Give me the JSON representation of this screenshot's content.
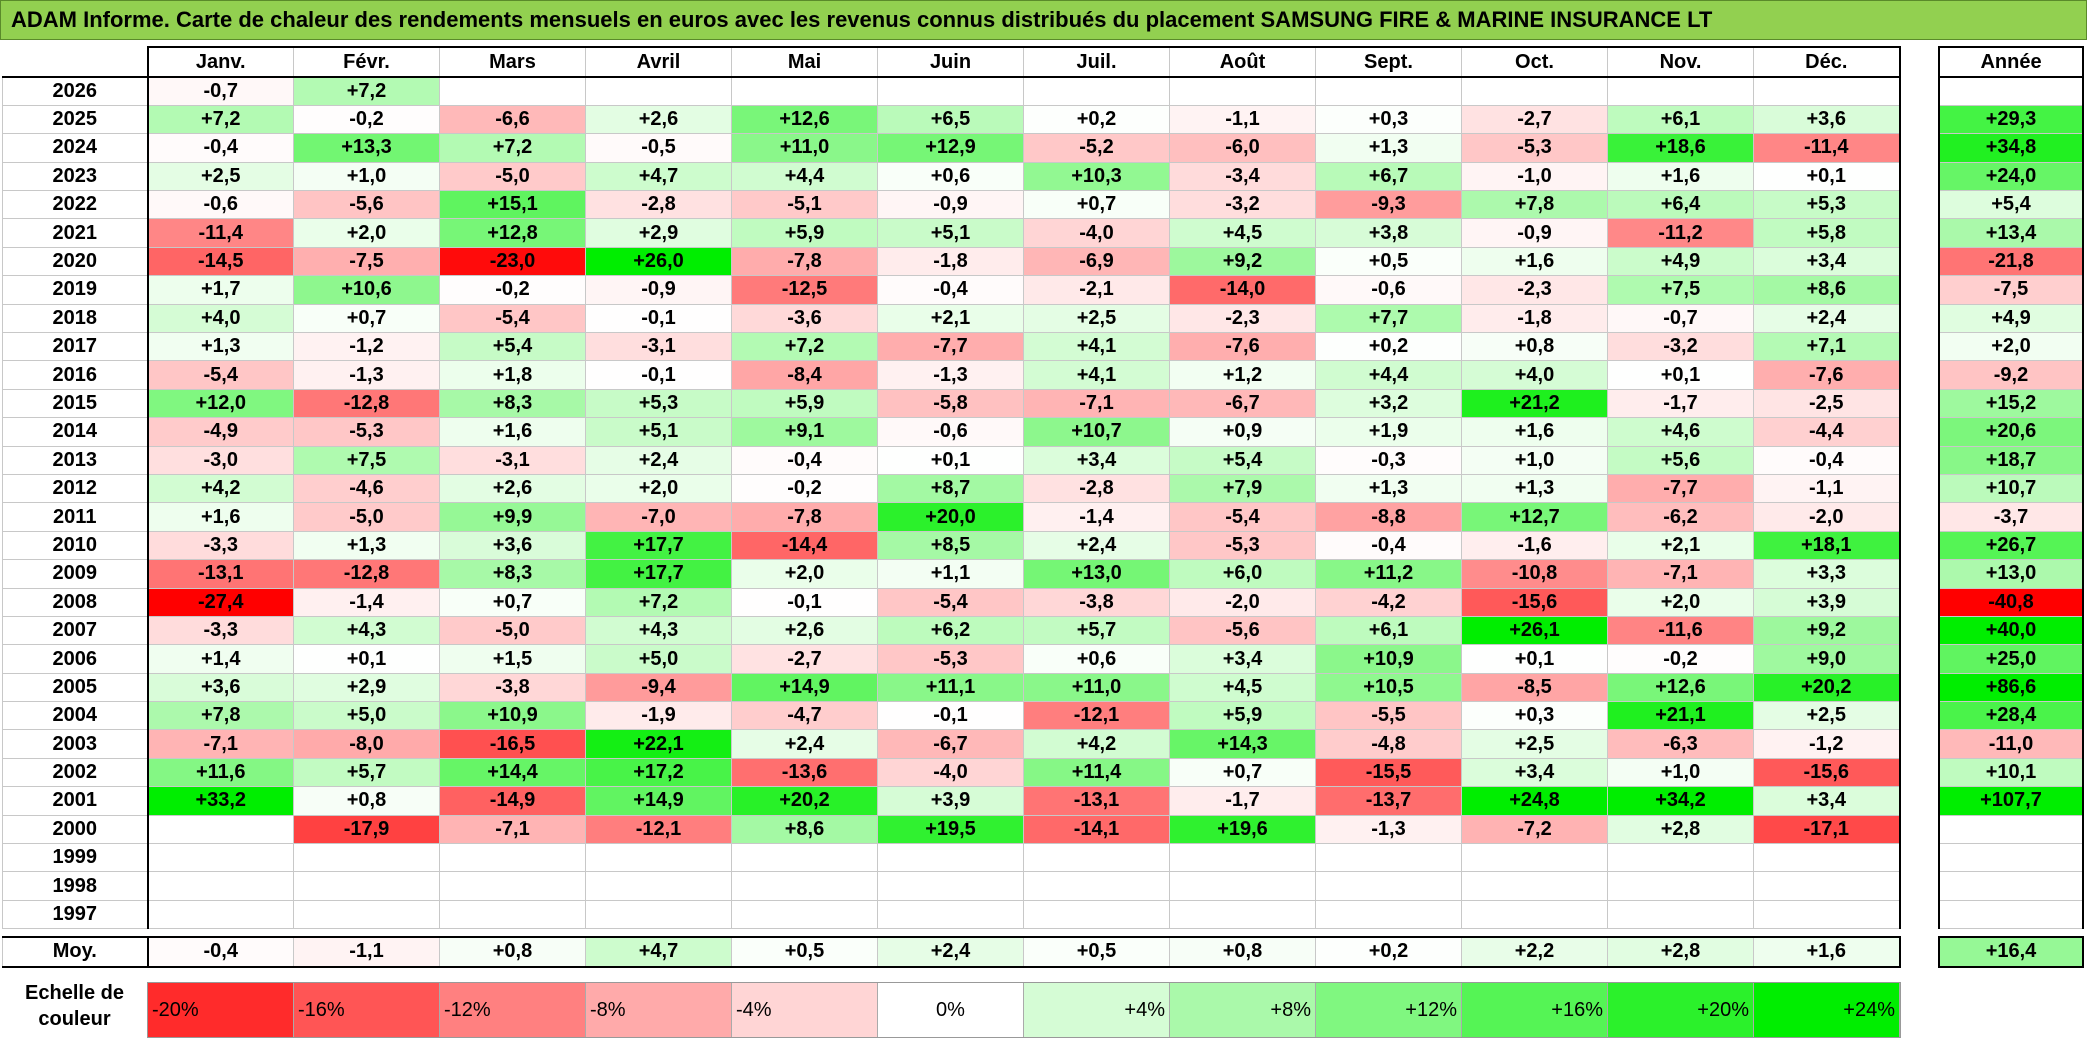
{
  "title": "ADAM Informe. Carte de chaleur des rendements mensuels en euros avec les revenus connus distribués du placement SAMSUNG FIRE & MARINE INSURANCE LT",
  "year_header": "Année",
  "avg_label": "Moy.",
  "scale_label": "Echelle de couleur",
  "chart_data": {
    "type": "heatmap",
    "columns": [
      "Janv.",
      "Févr.",
      "Mars",
      "Avril",
      "Mai",
      "Juin",
      "Juil.",
      "Août",
      "Sept.",
      "Oct.",
      "Nov.",
      "Déc."
    ],
    "rows": [
      {
        "year": "2026",
        "months": [
          -0.7,
          7.2,
          null,
          null,
          null,
          null,
          null,
          null,
          null,
          null,
          null,
          null
        ],
        "annual": null
      },
      {
        "year": "2025",
        "months": [
          7.2,
          -0.2,
          -6.6,
          2.6,
          12.6,
          6.5,
          0.2,
          -1.1,
          0.3,
          -2.7,
          6.1,
          3.6
        ],
        "annual": 29.3
      },
      {
        "year": "2024",
        "months": [
          -0.4,
          13.3,
          7.2,
          -0.5,
          11.0,
          12.9,
          -5.2,
          -6.0,
          1.3,
          -5.3,
          18.6,
          -11.4
        ],
        "annual": 34.8
      },
      {
        "year": "2023",
        "months": [
          2.5,
          1.0,
          -5.0,
          4.7,
          4.4,
          0.6,
          10.3,
          -3.4,
          6.7,
          -1.0,
          1.6,
          0.1
        ],
        "annual": 24.0
      },
      {
        "year": "2022",
        "months": [
          -0.6,
          -5.6,
          15.1,
          -2.8,
          -5.1,
          -0.9,
          0.7,
          -3.2,
          -9.3,
          7.8,
          6.4,
          5.3
        ],
        "annual": 5.4
      },
      {
        "year": "2021",
        "months": [
          -11.4,
          2.0,
          12.8,
          2.9,
          5.9,
          5.1,
          -4.0,
          4.5,
          3.8,
          -0.9,
          -11.2,
          5.8
        ],
        "annual": 13.4
      },
      {
        "year": "2020",
        "months": [
          -14.5,
          -7.5,
          -23.0,
          26.0,
          -7.8,
          -1.8,
          -6.9,
          9.2,
          0.5,
          1.6,
          4.9,
          3.4
        ],
        "annual": -21.8
      },
      {
        "year": "2019",
        "months": [
          1.7,
          10.6,
          -0.2,
          -0.9,
          -12.5,
          -0.4,
          -2.1,
          -14.0,
          -0.6,
          -2.3,
          7.5,
          8.6
        ],
        "annual": -7.5
      },
      {
        "year": "2018",
        "months": [
          4.0,
          0.7,
          -5.4,
          -0.1,
          -3.6,
          2.1,
          2.5,
          -2.3,
          7.7,
          -1.8,
          -0.7,
          2.4
        ],
        "annual": 4.9
      },
      {
        "year": "2017",
        "months": [
          1.3,
          -1.2,
          5.4,
          -3.1,
          7.2,
          -7.7,
          4.1,
          -7.6,
          0.2,
          0.8,
          -3.2,
          7.1
        ],
        "annual": 2.0
      },
      {
        "year": "2016",
        "months": [
          -5.4,
          -1.3,
          1.8,
          -0.1,
          -8.4,
          -1.3,
          4.1,
          1.2,
          4.4,
          4.0,
          0.1,
          -7.6
        ],
        "annual": -9.2
      },
      {
        "year": "2015",
        "months": [
          12.0,
          -12.8,
          8.3,
          5.3,
          5.9,
          -5.8,
          -7.1,
          -6.7,
          3.2,
          21.2,
          -1.7,
          -2.5
        ],
        "annual": 15.2
      },
      {
        "year": "2014",
        "months": [
          -4.9,
          -5.3,
          1.6,
          5.1,
          9.1,
          -0.6,
          10.7,
          0.9,
          1.9,
          1.6,
          4.6,
          -4.4
        ],
        "annual": 20.6
      },
      {
        "year": "2013",
        "months": [
          -3.0,
          7.5,
          -3.1,
          2.4,
          -0.4,
          0.1,
          3.4,
          5.4,
          -0.3,
          1.0,
          5.6,
          -0.4
        ],
        "annual": 18.7
      },
      {
        "year": "2012",
        "months": [
          4.2,
          -4.6,
          2.6,
          2.0,
          -0.2,
          8.7,
          -2.8,
          7.9,
          1.3,
          1.3,
          -7.7,
          -1.1
        ],
        "annual": 10.7
      },
      {
        "year": "2011",
        "months": [
          1.6,
          -5.0,
          9.9,
          -7.0,
          -7.8,
          20.0,
          -1.4,
          -5.4,
          -8.8,
          12.7,
          -6.2,
          -2.0
        ],
        "annual": -3.7
      },
      {
        "year": "2010",
        "months": [
          -3.3,
          1.3,
          3.6,
          17.7,
          -14.4,
          8.5,
          2.4,
          -5.3,
          -0.4,
          -1.6,
          2.1,
          18.1
        ],
        "annual": 26.7
      },
      {
        "year": "2009",
        "months": [
          -13.1,
          -12.8,
          8.3,
          17.7,
          2.0,
          1.1,
          13.0,
          6.0,
          11.2,
          -10.8,
          -7.1,
          3.3
        ],
        "annual": 13.0
      },
      {
        "year": "2008",
        "months": [
          -27.4,
          -1.4,
          0.7,
          7.2,
          -0.1,
          -5.4,
          -3.8,
          -2.0,
          -4.2,
          -15.6,
          2.0,
          3.9
        ],
        "annual": -40.8
      },
      {
        "year": "2007",
        "months": [
          -3.3,
          4.3,
          -5.0,
          4.3,
          2.6,
          6.2,
          5.7,
          -5.6,
          6.1,
          26.1,
          -11.6,
          9.2
        ],
        "annual": 40.0
      },
      {
        "year": "2006",
        "months": [
          1.4,
          0.1,
          1.5,
          5.0,
          -2.7,
          -5.3,
          0.6,
          3.4,
          10.9,
          0.1,
          -0.2,
          9.0
        ],
        "annual": 25.0
      },
      {
        "year": "2005",
        "months": [
          3.6,
          2.9,
          -3.8,
          -9.4,
          14.9,
          11.1,
          11.0,
          4.5,
          10.5,
          -8.5,
          12.6,
          20.2
        ],
        "annual": 86.6
      },
      {
        "year": "2004",
        "months": [
          7.8,
          5.0,
          10.9,
          -1.9,
          -4.7,
          -0.1,
          -12.1,
          5.9,
          -5.5,
          0.3,
          21.1,
          2.5
        ],
        "annual": 28.4
      },
      {
        "year": "2003",
        "months": [
          -7.1,
          -8.0,
          -16.5,
          22.1,
          2.4,
          -6.7,
          4.2,
          14.3,
          -4.8,
          2.5,
          -6.3,
          -1.2
        ],
        "annual": -11.0
      },
      {
        "year": "2002",
        "months": [
          11.6,
          5.7,
          14.4,
          17.2,
          -13.6,
          -4.0,
          11.4,
          0.7,
          -15.5,
          3.4,
          1.0,
          -15.6
        ],
        "annual": 10.1
      },
      {
        "year": "2001",
        "months": [
          33.2,
          0.8,
          -14.9,
          14.9,
          20.2,
          3.9,
          -13.1,
          -1.7,
          -13.7,
          24.8,
          34.2,
          3.4
        ],
        "annual": 107.7
      },
      {
        "year": "2000",
        "months": [
          null,
          -17.9,
          -7.1,
          -12.1,
          8.6,
          19.5,
          -14.1,
          19.6,
          -1.3,
          -7.2,
          2.8,
          -17.1
        ],
        "annual": null
      },
      {
        "year": "1999",
        "months": [
          null,
          null,
          null,
          null,
          null,
          null,
          null,
          null,
          null,
          null,
          null,
          null
        ],
        "annual": null
      },
      {
        "year": "1998",
        "months": [
          null,
          null,
          null,
          null,
          null,
          null,
          null,
          null,
          null,
          null,
          null,
          null
        ],
        "annual": null
      },
      {
        "year": "1997",
        "months": [
          null,
          null,
          null,
          null,
          null,
          null,
          null,
          null,
          null,
          null,
          null,
          null
        ],
        "annual": null
      }
    ],
    "average": {
      "months": [
        -0.4,
        -1.1,
        0.8,
        4.7,
        0.5,
        2.4,
        0.5,
        0.8,
        0.2,
        2.2,
        2.8,
        1.6
      ],
      "annual": 16.4
    },
    "color_scale": {
      "labels": [
        "-20%",
        "-16%",
        "-12%",
        "-8%",
        "-4%",
        "0%",
        "+4%",
        "+8%",
        "+12%",
        "+16%",
        "+20%",
        "+24%"
      ],
      "values": [
        -20,
        -16,
        -12,
        -8,
        -4,
        0,
        4,
        8,
        12,
        16,
        20,
        24
      ],
      "negative_color": "#ff0000",
      "neutral_color": "#ffffff",
      "positive_color": "#00ee00"
    }
  }
}
